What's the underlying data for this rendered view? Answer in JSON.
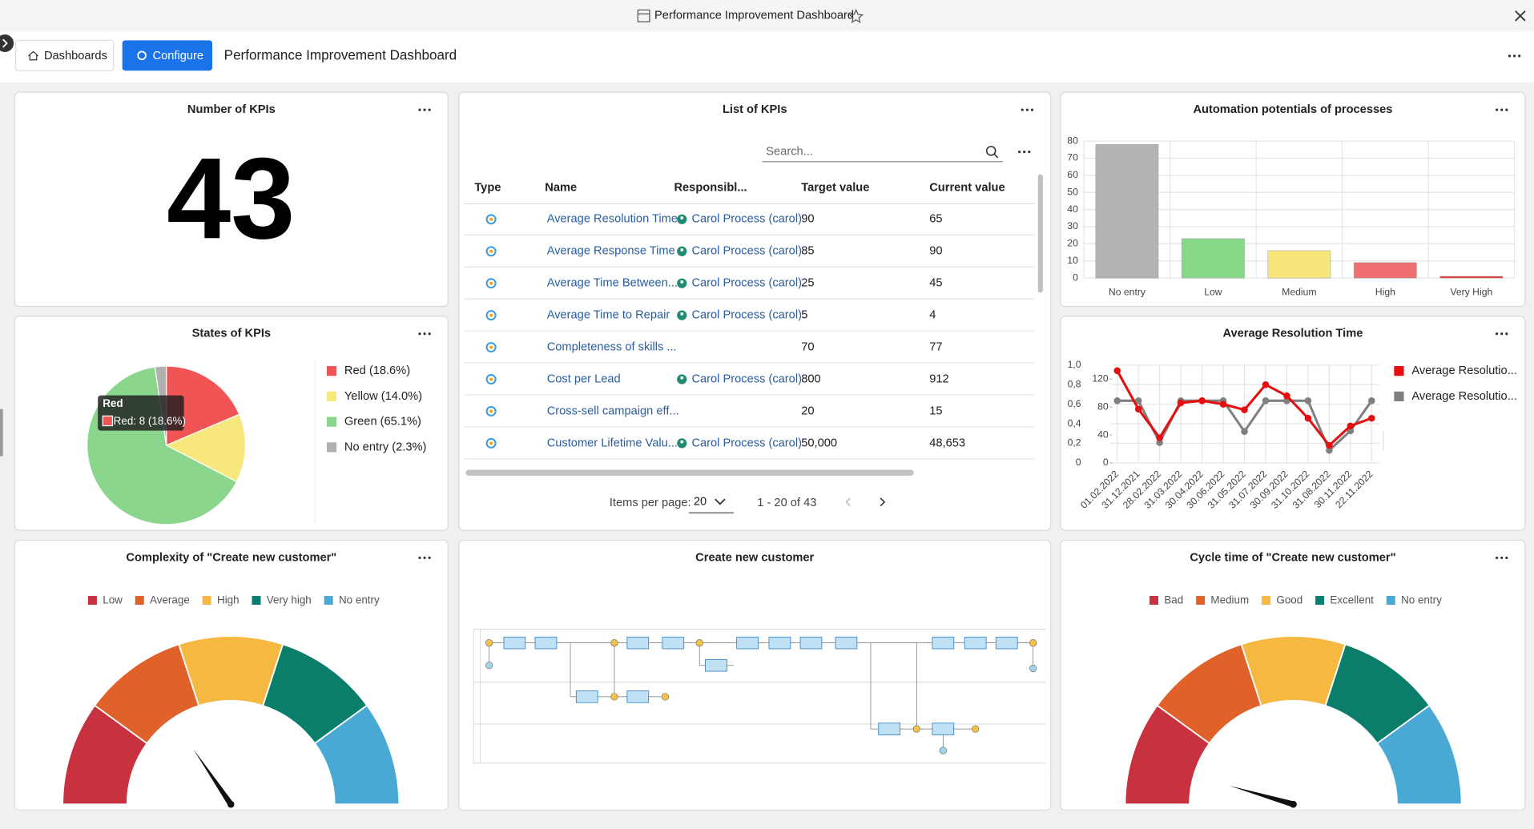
{
  "window": {
    "title": "Performance Improvement Dashboard"
  },
  "toolbar": {
    "dashboards": "Dashboards",
    "configure": "Configure",
    "title": "Performance Improvement Dashboard"
  },
  "kpi_count": {
    "title": "Number of KPIs",
    "value": 43
  },
  "kpi_list": {
    "title": "List of KPIs",
    "search_placeholder": "Search...",
    "columns": [
      "Type",
      "Name",
      "Responsibl...",
      "Target value",
      "Current value"
    ],
    "rows": [
      {
        "name": "Average Resolution Time",
        "responsible": "Carol Process (carol)",
        "target": 90,
        "current": 65
      },
      {
        "name": "Average Response Time",
        "responsible": "Carol Process (carol)",
        "target": 85,
        "current": 90
      },
      {
        "name": "Average Time Between...",
        "responsible": "Carol Process (carol)",
        "target": 25,
        "current": 45
      },
      {
        "name": "Average Time to Repair",
        "responsible": "Carol Process (carol)",
        "target": 5,
        "current": 4
      },
      {
        "name": "Completeness of skills ...",
        "responsible": null,
        "target": 70,
        "current": 77
      },
      {
        "name": "Cost per Lead",
        "responsible": "Carol Process (carol)",
        "target": 800,
        "current": 912
      },
      {
        "name": "Cross-sell campaign eff...",
        "responsible": null,
        "target": 20,
        "current": 15
      },
      {
        "name": "Customer Lifetime Valu...",
        "responsible": "Carol Process (carol)",
        "target": "50,000",
        "current": "48,653"
      }
    ],
    "items_per_page_label": "Items per page:",
    "items_per_page": 20,
    "range": "1 - 20 of 43"
  },
  "process": {
    "title": "Create new customer"
  },
  "chart_data": [
    {
      "type": "bar",
      "title": "Automation potentials of processes",
      "categories": [
        "No entry",
        "Low",
        "Medium",
        "High",
        "Very High"
      ],
      "values": [
        78,
        23,
        16,
        9,
        1
      ],
      "colors": [
        "#b3b3b3",
        "#88d88a",
        "#f6e67a",
        "#f07072",
        "#e83535"
      ],
      "ylim": [
        0,
        80
      ],
      "yticks": [
        0,
        10,
        20,
        30,
        40,
        50,
        60,
        70,
        80
      ],
      "grid": true
    },
    {
      "type": "pie",
      "title": "States of KPIs",
      "categories": [
        "Red (18.6%)",
        "Yellow (14.0%)",
        "Green (65.1%)",
        "No entry (2.3%)"
      ],
      "values": [
        18.6,
        14.0,
        65.1,
        2.3
      ],
      "colors": [
        "#f15455",
        "#f7e77c",
        "#89d68c",
        "#b0b0b0"
      ],
      "legend": "right",
      "tooltip": {
        "title": "Red",
        "text": "Red: 8 (18.6%)"
      }
    },
    {
      "type": "line",
      "title": "Average Resolution Time",
      "x": [
        "01.02.2022",
        "31.12.2021",
        "28.02.2022",
        "31.03.2022",
        "30.04.2022",
        "30.06.2022",
        "31.05.2022",
        "31.07.2022",
        "30.09.2022",
        "31.10.2022",
        "31.08.2022",
        "30.11.2022",
        "22.11.2022"
      ],
      "series": [
        {
          "name": "Average Resolutio...",
          "color": "#e60f0f",
          "axis": "y2",
          "values": [
            132,
            77,
            36,
            86,
            89,
            84,
            76,
            112,
            96,
            64,
            25,
            53,
            64
          ]
        },
        {
          "name": "Average Resolutio...",
          "color": "#808080",
          "axis": "y2",
          "values": [
            89,
            89,
            29,
            89,
            89,
            89,
            45,
            89,
            89,
            89,
            18,
            46,
            89
          ]
        }
      ],
      "ylim": [
        0,
        1
      ],
      "yticks": [
        0,
        {
          "value": 0.2,
          "label": "0,2"
        },
        {
          "value": 0.4,
          "label": "0,4"
        },
        {
          "value": 0.6,
          "label": "0,6"
        },
        {
          "value": 0.8,
          "label": "0,8"
        },
        {
          "value": 1,
          "label": "1,0"
        }
      ],
      "y2lim": [
        0,
        140
      ],
      "y2ticks": [
        0,
        40,
        80,
        120
      ],
      "grid": true,
      "legend": "right"
    },
    {
      "type": "gauge",
      "title": "Complexity of \"Create new customer\"",
      "categories": [
        "Low",
        "Average",
        "High",
        "Very high",
        "No entry"
      ],
      "colors": [
        "#c8313e",
        "#e0622a",
        "#f5b942",
        "#0a7d6b",
        "#49a8d4"
      ],
      "value": 31,
      "lim": [
        0,
        100
      ]
    },
    {
      "type": "gauge",
      "title": "Cycle time of \"Create new customer\"",
      "categories": [
        "Bad",
        "Medium",
        "Good",
        "Excellent",
        "No entry"
      ],
      "colors": [
        "#c8313e",
        "#e0622a",
        "#f5b942",
        "#0a7d6b",
        "#49a8d4"
      ],
      "value": 9,
      "lim": [
        0,
        100
      ]
    }
  ]
}
